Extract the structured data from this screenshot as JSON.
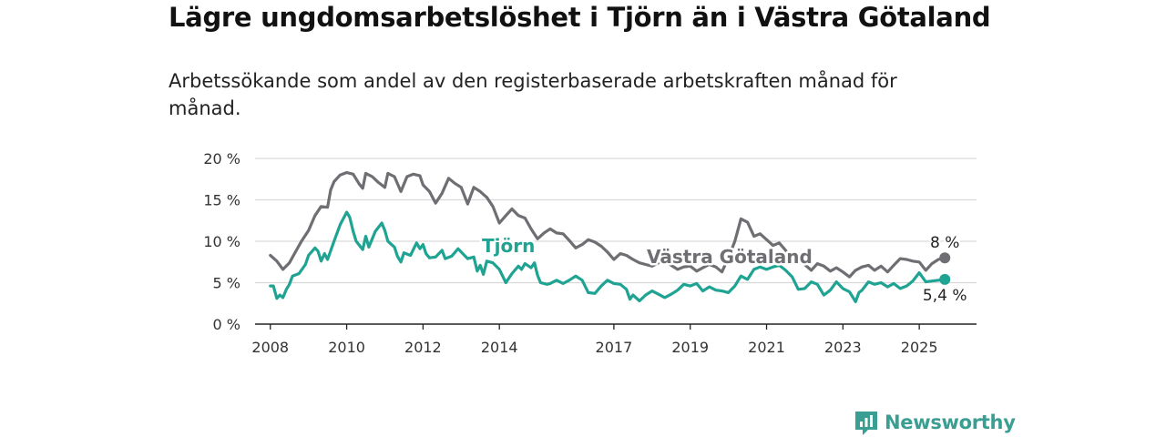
{
  "title": "Lägre ungdomsarbetslöshet i Tjörn än i Västra Götaland",
  "subtitle": "Arbetssökande som andel av den registerbaserade arbetskraften månad för månad.",
  "brand": {
    "name": "Newsworthy",
    "color": "#3a9e92"
  },
  "chart_data": {
    "type": "line",
    "x_unit": "year",
    "y_ticks": [
      "0 %",
      "5 %",
      "10 %",
      "15 %",
      "20 %"
    ],
    "y_tick_values": [
      0,
      5,
      10,
      15,
      20
    ],
    "ylim": [
      0,
      20
    ],
    "x_ticks": [
      "2008",
      "2010",
      "2012",
      "2014",
      "2017",
      "2019",
      "2021",
      "2023",
      "2025"
    ],
    "x_tick_values": [
      2008,
      2010,
      2012,
      2014,
      2017,
      2019,
      2021,
      2023,
      2025
    ],
    "xlim": [
      2007.6,
      2026.5
    ],
    "grid": true,
    "series": [
      {
        "name": "Västra Götaland",
        "color": "#6e6e73",
        "end_label": "8 %",
        "points": [
          [
            2008.0,
            8.3
          ],
          [
            2008.17,
            7.6
          ],
          [
            2008.33,
            6.6
          ],
          [
            2008.5,
            7.4
          ],
          [
            2008.67,
            8.8
          ],
          [
            2008.83,
            10.1
          ],
          [
            2009.0,
            11.3
          ],
          [
            2009.17,
            13.1
          ],
          [
            2009.33,
            14.2
          ],
          [
            2009.5,
            14.1
          ],
          [
            2009.58,
            16.2
          ],
          [
            2009.67,
            17.2
          ],
          [
            2009.83,
            18.0
          ],
          [
            2010.0,
            18.3
          ],
          [
            2010.17,
            18.1
          ],
          [
            2010.33,
            16.9
          ],
          [
            2010.42,
            16.4
          ],
          [
            2010.5,
            18.2
          ],
          [
            2010.67,
            17.8
          ],
          [
            2010.83,
            17.1
          ],
          [
            2011.0,
            16.5
          ],
          [
            2011.08,
            18.2
          ],
          [
            2011.25,
            17.8
          ],
          [
            2011.42,
            16.0
          ],
          [
            2011.58,
            17.8
          ],
          [
            2011.75,
            18.1
          ],
          [
            2011.92,
            17.9
          ],
          [
            2012.0,
            16.8
          ],
          [
            2012.17,
            16.0
          ],
          [
            2012.33,
            14.6
          ],
          [
            2012.5,
            15.8
          ],
          [
            2012.67,
            17.6
          ],
          [
            2012.83,
            17.0
          ],
          [
            2013.0,
            16.5
          ],
          [
            2013.17,
            14.5
          ],
          [
            2013.33,
            16.5
          ],
          [
            2013.5,
            16.0
          ],
          [
            2013.67,
            15.3
          ],
          [
            2013.83,
            14.2
          ],
          [
            2014.0,
            12.2
          ],
          [
            2014.17,
            13.1
          ],
          [
            2014.33,
            13.9
          ],
          [
            2014.5,
            13.1
          ],
          [
            2014.67,
            12.8
          ],
          [
            2014.83,
            11.5
          ],
          [
            2015.0,
            10.3
          ],
          [
            2015.17,
            11.0
          ],
          [
            2015.33,
            11.5
          ],
          [
            2015.5,
            11.0
          ],
          [
            2015.67,
            10.9
          ],
          [
            2015.83,
            10.1
          ],
          [
            2016.0,
            9.2
          ],
          [
            2016.17,
            9.6
          ],
          [
            2016.33,
            10.2
          ],
          [
            2016.5,
            9.9
          ],
          [
            2016.67,
            9.4
          ],
          [
            2016.83,
            8.7
          ],
          [
            2017.0,
            7.8
          ],
          [
            2017.17,
            8.5
          ],
          [
            2017.33,
            8.3
          ],
          [
            2017.5,
            7.8
          ],
          [
            2017.67,
            7.4
          ],
          [
            2017.83,
            7.2
          ],
          [
            2018.0,
            7.0
          ],
          [
            2018.17,
            7.4
          ],
          [
            2018.33,
            7.6
          ],
          [
            2018.5,
            7.1
          ],
          [
            2018.67,
            6.6
          ],
          [
            2018.83,
            6.9
          ],
          [
            2019.0,
            7.0
          ],
          [
            2019.17,
            6.4
          ],
          [
            2019.33,
            6.8
          ],
          [
            2019.5,
            7.2
          ],
          [
            2019.67,
            6.9
          ],
          [
            2019.83,
            6.3
          ],
          [
            2020.0,
            8.0
          ],
          [
            2020.17,
            10.0
          ],
          [
            2020.33,
            12.7
          ],
          [
            2020.5,
            12.3
          ],
          [
            2020.67,
            10.6
          ],
          [
            2020.83,
            10.9
          ],
          [
            2021.0,
            10.2
          ],
          [
            2021.17,
            9.5
          ],
          [
            2021.33,
            9.8
          ],
          [
            2021.5,
            8.9
          ],
          [
            2021.67,
            7.8
          ],
          [
            2021.83,
            8.2
          ],
          [
            2022.0,
            7.2
          ],
          [
            2022.17,
            6.5
          ],
          [
            2022.33,
            7.3
          ],
          [
            2022.5,
            7.0
          ],
          [
            2022.67,
            6.4
          ],
          [
            2022.83,
            6.8
          ],
          [
            2023.0,
            6.3
          ],
          [
            2023.17,
            5.7
          ],
          [
            2023.33,
            6.5
          ],
          [
            2023.5,
            6.9
          ],
          [
            2023.67,
            7.1
          ],
          [
            2023.83,
            6.5
          ],
          [
            2024.0,
            7.0
          ],
          [
            2024.17,
            6.3
          ],
          [
            2024.33,
            7.1
          ],
          [
            2024.5,
            7.9
          ],
          [
            2024.67,
            7.8
          ],
          [
            2024.83,
            7.6
          ],
          [
            2025.0,
            7.5
          ],
          [
            2025.17,
            6.5
          ],
          [
            2025.33,
            7.3
          ],
          [
            2025.5,
            7.8
          ],
          [
            2025.67,
            8.0
          ]
        ]
      },
      {
        "name": "Tjörn",
        "color": "#1fa392",
        "end_label": "5,4 %",
        "points": [
          [
            2008.0,
            4.6
          ],
          [
            2008.08,
            4.6
          ],
          [
            2008.17,
            3.1
          ],
          [
            2008.25,
            3.5
          ],
          [
            2008.33,
            3.2
          ],
          [
            2008.42,
            4.2
          ],
          [
            2008.5,
            4.8
          ],
          [
            2008.58,
            5.8
          ],
          [
            2008.75,
            6.1
          ],
          [
            2008.92,
            7.2
          ],
          [
            2009.0,
            8.3
          ],
          [
            2009.17,
            9.2
          ],
          [
            2009.25,
            8.8
          ],
          [
            2009.33,
            7.6
          ],
          [
            2009.42,
            8.5
          ],
          [
            2009.5,
            7.8
          ],
          [
            2009.67,
            10.0
          ],
          [
            2009.83,
            12.0
          ],
          [
            2010.0,
            13.5
          ],
          [
            2010.08,
            12.9
          ],
          [
            2010.17,
            11.2
          ],
          [
            2010.25,
            10.0
          ],
          [
            2010.42,
            9.0
          ],
          [
            2010.5,
            10.6
          ],
          [
            2010.58,
            9.3
          ],
          [
            2010.75,
            11.2
          ],
          [
            2010.92,
            12.2
          ],
          [
            2011.0,
            11.3
          ],
          [
            2011.08,
            10.0
          ],
          [
            2011.25,
            9.3
          ],
          [
            2011.33,
            8.2
          ],
          [
            2011.42,
            7.5
          ],
          [
            2011.5,
            8.6
          ],
          [
            2011.67,
            8.3
          ],
          [
            2011.83,
            9.8
          ],
          [
            2011.92,
            9.1
          ],
          [
            2012.0,
            9.6
          ],
          [
            2012.08,
            8.5
          ],
          [
            2012.17,
            8.0
          ],
          [
            2012.33,
            8.1
          ],
          [
            2012.5,
            8.9
          ],
          [
            2012.58,
            7.9
          ],
          [
            2012.75,
            8.2
          ],
          [
            2012.92,
            9.1
          ],
          [
            2013.0,
            8.7
          ],
          [
            2013.17,
            7.9
          ],
          [
            2013.33,
            8.1
          ],
          [
            2013.42,
            6.4
          ],
          [
            2013.5,
            7.1
          ],
          [
            2013.58,
            6.0
          ],
          [
            2013.67,
            7.6
          ],
          [
            2013.83,
            7.4
          ],
          [
            2014.0,
            6.6
          ],
          [
            2014.17,
            5.0
          ],
          [
            2014.33,
            6.1
          ],
          [
            2014.5,
            7.0
          ],
          [
            2014.58,
            6.6
          ],
          [
            2014.67,
            7.3
          ],
          [
            2014.83,
            6.8
          ],
          [
            2014.92,
            7.4
          ],
          [
            2015.0,
            5.9
          ],
          [
            2015.08,
            5.0
          ],
          [
            2015.25,
            4.8
          ],
          [
            2015.33,
            4.9
          ],
          [
            2015.5,
            5.3
          ],
          [
            2015.67,
            4.9
          ],
          [
            2015.83,
            5.3
          ],
          [
            2016.0,
            5.8
          ],
          [
            2016.17,
            5.3
          ],
          [
            2016.33,
            3.8
          ],
          [
            2016.5,
            3.7
          ],
          [
            2016.67,
            4.6
          ],
          [
            2016.83,
            5.3
          ],
          [
            2017.0,
            4.9
          ],
          [
            2017.17,
            4.8
          ],
          [
            2017.33,
            4.2
          ],
          [
            2017.42,
            3.0
          ],
          [
            2017.5,
            3.5
          ],
          [
            2017.67,
            2.8
          ],
          [
            2017.83,
            3.5
          ],
          [
            2018.0,
            4.0
          ],
          [
            2018.17,
            3.6
          ],
          [
            2018.33,
            3.2
          ],
          [
            2018.5,
            3.6
          ],
          [
            2018.67,
            4.1
          ],
          [
            2018.83,
            4.8
          ],
          [
            2019.0,
            4.6
          ],
          [
            2019.17,
            4.9
          ],
          [
            2019.33,
            4.0
          ],
          [
            2019.5,
            4.5
          ],
          [
            2019.67,
            4.1
          ],
          [
            2019.83,
            4.0
          ],
          [
            2020.0,
            3.8
          ],
          [
            2020.17,
            4.6
          ],
          [
            2020.33,
            5.8
          ],
          [
            2020.5,
            5.4
          ],
          [
            2020.67,
            6.6
          ],
          [
            2020.83,
            6.9
          ],
          [
            2021.0,
            6.6
          ],
          [
            2021.17,
            6.9
          ],
          [
            2021.33,
            7.1
          ],
          [
            2021.5,
            6.5
          ],
          [
            2021.67,
            5.7
          ],
          [
            2021.83,
            4.2
          ],
          [
            2022.0,
            4.3
          ],
          [
            2022.17,
            5.1
          ],
          [
            2022.33,
            4.8
          ],
          [
            2022.5,
            3.5
          ],
          [
            2022.67,
            4.1
          ],
          [
            2022.83,
            5.1
          ],
          [
            2023.0,
            4.3
          ],
          [
            2023.17,
            3.9
          ],
          [
            2023.33,
            2.7
          ],
          [
            2023.42,
            3.8
          ],
          [
            2023.5,
            4.1
          ],
          [
            2023.67,
            5.1
          ],
          [
            2023.83,
            4.8
          ],
          [
            2024.0,
            5.0
          ],
          [
            2024.17,
            4.5
          ],
          [
            2024.33,
            4.9
          ],
          [
            2024.5,
            4.3
          ],
          [
            2024.67,
            4.6
          ],
          [
            2024.83,
            5.2
          ],
          [
            2025.0,
            6.2
          ],
          [
            2025.17,
            5.1
          ],
          [
            2025.33,
            5.2
          ],
          [
            2025.5,
            5.3
          ],
          [
            2025.67,
            5.4
          ]
        ]
      }
    ]
  }
}
